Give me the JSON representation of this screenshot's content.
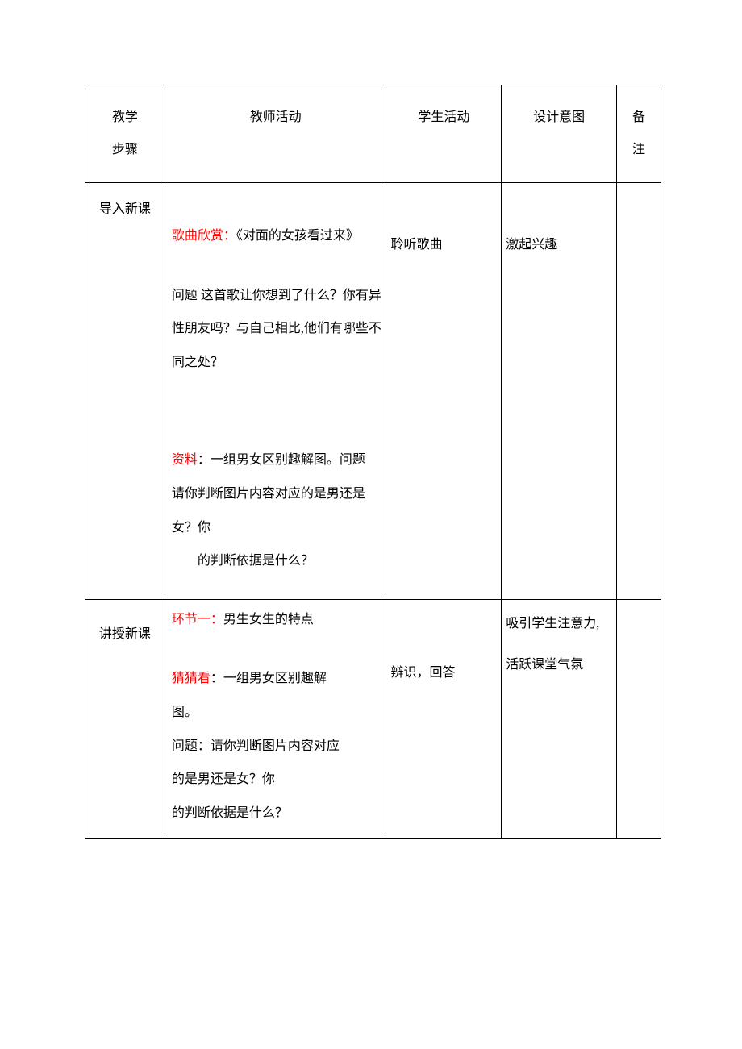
{
  "headers": {
    "step": "教学\n步骤",
    "teacher": "教师活动",
    "student": "学生活动",
    "intent": "设计意图",
    "notes": "备\n注"
  },
  "row1": {
    "step": "导入新课",
    "teacher": {
      "l1_red": "歌曲欣赏：",
      "l1_rest": "《对面的女孩看过来》",
      "l2": "问题 这首歌让你想到了什么？你有异性朋友吗？与自己相比,他们有哪些不同之处？",
      "l3_red": "资料",
      "l3_rest": "：一组男女区别趣解图。问题",
      "l4": "请你判断图片内容对应的是男还是女？你",
      "l5": "的判断依据是什么？"
    },
    "student": "聆听歌曲",
    "intent": "激起兴趣"
  },
  "row2": {
    "step": "讲授新课",
    "teacher": {
      "l1_red": "环节一：",
      "l1_rest": "男生女生的特点",
      "l2_red": "猜猜看",
      "l2_rest": "：一组男女区别趣解图。",
      "l3": "问题：请你判断图片内容对应的是男还是女？你",
      "l4": "的判断依据是什么？"
    },
    "student": "辨识，回答",
    "intent": "吸引学生注意力,活跃课堂气氛"
  },
  "colors": {
    "text": "#000000",
    "red": "#ff0000",
    "border": "#000000",
    "background": "#ffffff"
  }
}
